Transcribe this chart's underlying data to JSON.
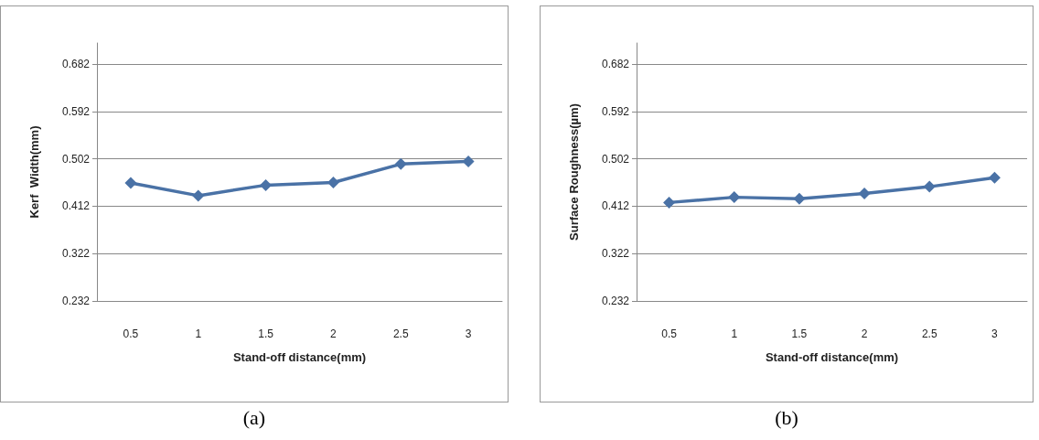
{
  "chart_data": [
    {
      "type": "line",
      "xlabel": "Stand-off distance(mm)",
      "ylabel": "Kerf  Width(mm)",
      "categories": [
        "0.5",
        "1",
        "1.5",
        "2",
        "2.5",
        "3"
      ],
      "series": [
        {
          "color": "#4a72a6",
          "values": [
            0.456,
            0.432,
            0.452,
            0.457,
            0.492,
            0.497
          ]
        }
      ],
      "ylim": [
        0.232,
        0.722
      ],
      "yticks": [
        0.232,
        0.322,
        0.412,
        0.502,
        0.592,
        0.682
      ],
      "grid": "y",
      "marker": "diamond",
      "line_style": "solid",
      "annotations": [
        "(a)"
      ]
    },
    {
      "type": "line",
      "xlabel": "Stand-off distance(mm)",
      "ylabel": "Surface Roughness(µm)",
      "categories": [
        "0.5",
        "1",
        "1.5",
        "2",
        "2.5",
        "3"
      ],
      "series": [
        {
          "color": "#4a72a6",
          "values": [
            0.419,
            0.429,
            0.426,
            0.436,
            0.449,
            0.466
          ]
        }
      ],
      "ylim": [
        0.232,
        0.722
      ],
      "yticks": [
        0.232,
        0.322,
        0.412,
        0.502,
        0.592,
        0.682
      ],
      "grid": "y",
      "marker": "diamond",
      "line_style": "solid",
      "annotations": [
        "(b)"
      ]
    }
  ]
}
